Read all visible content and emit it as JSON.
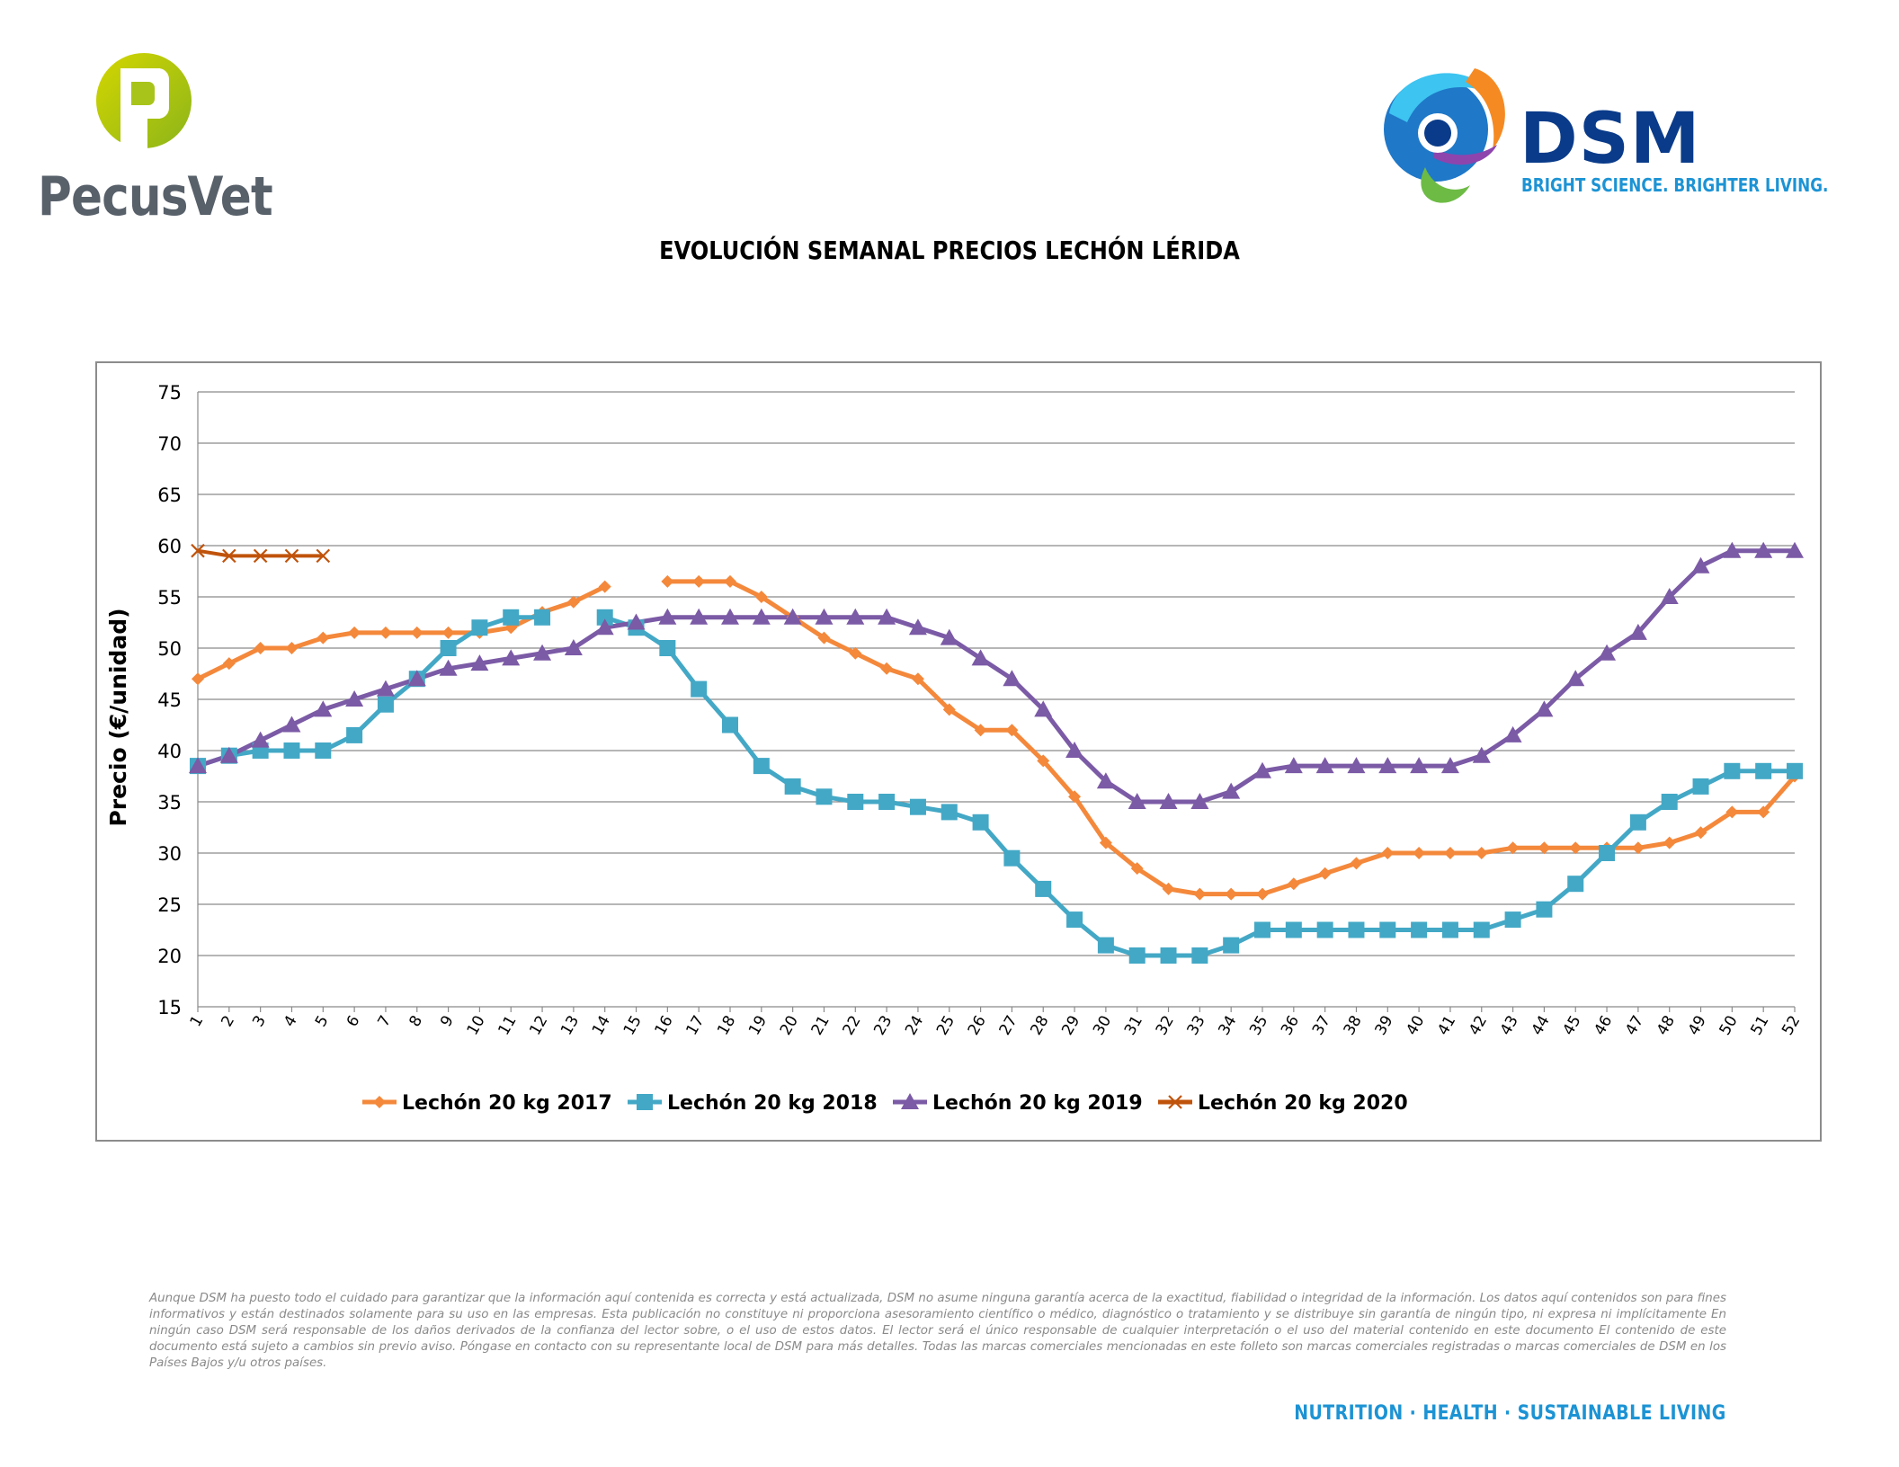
{
  "header": {
    "left_logo": {
      "name": "PecusVet",
      "icon": "pecusvet-p-logo",
      "color": "#a8c41a"
    },
    "right_logo": {
      "name": "DSM",
      "tagline": "BRIGHT SCIENCE. BRIGHTER LIVING.",
      "icon": "dsm-swirl-logo",
      "color": "#0a3b8a"
    }
  },
  "title": "EVOLUCIÓN SEMANAL PRECIOS LECHÓN LÉRIDA",
  "chart_data": {
    "type": "line",
    "title": "EVOLUCIÓN SEMANAL PRECIOS LECHÓN LÉRIDA",
    "xlabel": "",
    "ylabel": "Precio (€/unidad)",
    "ylim": [
      15,
      75
    ],
    "yticks": [
      15,
      20,
      25,
      30,
      35,
      40,
      45,
      50,
      55,
      60,
      65,
      70,
      75
    ],
    "x": [
      1,
      2,
      3,
      4,
      5,
      6,
      7,
      8,
      9,
      10,
      11,
      12,
      13,
      14,
      15,
      16,
      17,
      18,
      19,
      20,
      21,
      22,
      23,
      24,
      25,
      26,
      27,
      28,
      29,
      30,
      31,
      32,
      33,
      34,
      35,
      36,
      37,
      38,
      39,
      40,
      41,
      42,
      43,
      44,
      45,
      46,
      47,
      48,
      49,
      50,
      51,
      52
    ],
    "grid": true,
    "legend_position": "bottom",
    "series": [
      {
        "name": "Lechón 20 kg 2017",
        "color": "#f4883b",
        "marker": "diamond",
        "values": [
          47,
          48.5,
          50,
          50,
          51,
          51.5,
          51.5,
          51.5,
          51.5,
          51.5,
          52,
          53.5,
          54.5,
          56,
          null,
          56.5,
          56.5,
          56.5,
          55,
          53,
          51,
          49.5,
          48,
          47,
          44,
          42,
          42,
          39,
          35.5,
          31,
          28.5,
          26.5,
          26,
          26,
          26,
          27,
          28,
          29,
          30,
          30,
          30,
          30,
          30.5,
          30.5,
          30.5,
          30.5,
          30.5,
          31,
          32,
          34,
          34,
          37.5
        ]
      },
      {
        "name": "Lechón 20 kg 2018",
        "color": "#43a8c6",
        "marker": "square",
        "values": [
          38.5,
          39.5,
          40,
          40,
          40,
          41.5,
          44.5,
          47,
          50,
          52,
          53,
          53,
          null,
          53,
          52,
          50,
          46,
          42.5,
          38.5,
          36.5,
          35.5,
          35,
          35,
          34.5,
          34,
          33,
          29.5,
          26.5,
          23.5,
          21,
          20,
          20,
          20,
          21,
          22.5,
          22.5,
          22.5,
          22.5,
          22.5,
          22.5,
          22.5,
          22.5,
          23.5,
          24.5,
          27,
          30,
          33,
          35,
          36.5,
          38,
          38,
          38
        ]
      },
      {
        "name": "Lechón 20 kg 2019",
        "color": "#7b5aa6",
        "marker": "triangle",
        "values": [
          38.5,
          39.5,
          41,
          42.5,
          44,
          45,
          46,
          47,
          48,
          48.5,
          49,
          49.5,
          50,
          52,
          52.5,
          53,
          53,
          53,
          53,
          53,
          53,
          53,
          53,
          52,
          51,
          49,
          47,
          44,
          40,
          37,
          35,
          35,
          35,
          36,
          38,
          38.5,
          38.5,
          38.5,
          38.5,
          38.5,
          38.5,
          39.5,
          41.5,
          44,
          47,
          49.5,
          51.5,
          55,
          58,
          59.5,
          59.5,
          59.5
        ]
      },
      {
        "name": "Lechón 20 kg 2020",
        "color": "#c0530b",
        "marker": "x",
        "values": [
          59.5,
          59,
          59,
          59,
          59,
          null,
          null,
          null,
          null,
          null,
          null,
          null,
          null,
          null,
          null,
          null,
          null,
          null,
          null,
          null,
          null,
          null,
          null,
          null,
          null,
          null,
          null,
          null,
          null,
          null,
          null,
          null,
          null,
          null,
          null,
          null,
          null,
          null,
          null,
          null,
          null,
          null,
          null,
          null,
          null,
          null,
          null,
          null,
          null,
          null,
          null,
          null
        ]
      }
    ]
  },
  "disclaimer": "Aunque DSM ha puesto todo el cuidado para garantizar que la información aquí contenida es correcta y está actualizada, DSM no asume ninguna garantía acerca de la exactitud, fiabilidad o integridad de la información. Los datos aquí contenidos son para fines informativos y están destinados solamente para su uso en las empresas. Esta publicación no constituye ni proporciona asesoramiento científico o médico, diagnóstico o tratamiento y se distribuye sin garantía de ningún tipo, ni expresa ni implícitamente En ningún caso DSM será responsable de los daños derivados de la confianza del lector sobre, o el uso de estos datos. El lector será el único responsable de cualquier interpretación o el uso del material contenido en este documento El contenido de este documento está sujeto a cambios sin previo aviso. Póngase en contacto con su representante local de DSM para más detalles. Todas las marcas comerciales mencionadas en este folleto son marcas comerciales registradas o marcas comerciales de DSM en los Países Bajos y/u otros países.",
  "footer": {
    "tagline": "NUTRITION · HEALTH · SUSTAINABLE LIVING"
  }
}
